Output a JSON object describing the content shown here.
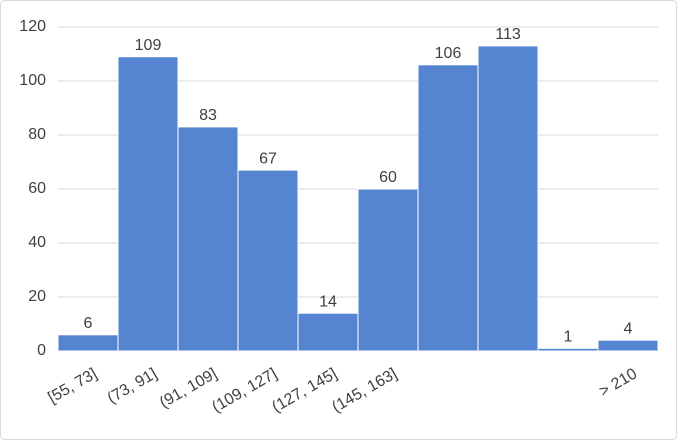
{
  "chart_data": {
    "type": "bar",
    "categories": [
      "[55, 73]",
      "(73, 91]",
      "(91, 109]",
      "(109, 127]",
      "(127, 145]",
      "(145, 163]",
      null,
      null,
      null,
      "> 210"
    ],
    "values": [
      6,
      109,
      83,
      67,
      14,
      60,
      106,
      113,
      1,
      4
    ],
    "color": "#5585d0",
    "ylim": [
      0,
      120
    ],
    "yticks": [
      0,
      20,
      40,
      60,
      80,
      100,
      120
    ],
    "grid": true
  }
}
